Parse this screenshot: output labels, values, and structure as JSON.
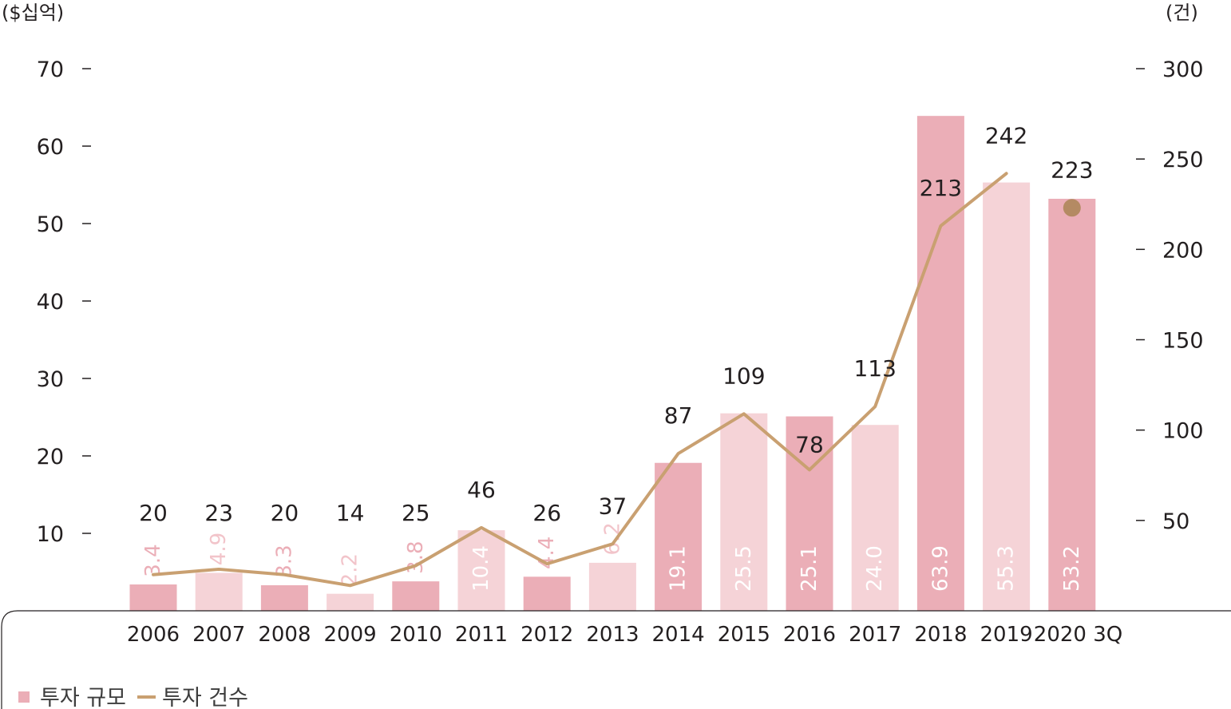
{
  "chart_data": {
    "type": "bar",
    "left_axis_unit": "($십억)",
    "right_axis_unit": "(건)",
    "left_ticks": [
      10,
      20,
      30,
      40,
      50,
      60,
      70
    ],
    "right_ticks": [
      50,
      100,
      150,
      200,
      250,
      300
    ],
    "ylim_left": [
      0,
      70
    ],
    "ylim_right": [
      0,
      300
    ],
    "categories": [
      "2006",
      "2007",
      "2008",
      "2009",
      "2010",
      "2011",
      "2012",
      "2013",
      "2014",
      "2015",
      "2016",
      "2017",
      "2018",
      "2019",
      "2020 3Q"
    ],
    "series": [
      {
        "name": "투자 규모",
        "axis": "left",
        "values": [
          3.4,
          4.9,
          3.3,
          2.2,
          3.8,
          10.4,
          4.4,
          6.2,
          19.1,
          25.5,
          25.1,
          24.0,
          63.9,
          55.3,
          53.2
        ],
        "labels": [
          "3.4",
          "4.9",
          "3.3",
          "2.2",
          "3.8",
          "10.4",
          "4.4",
          "6.2",
          "19.1",
          "25.5",
          "25.1",
          "24.0",
          "63.9",
          "55.3",
          "53.2"
        ]
      },
      {
        "name": "투자 건수",
        "axis": "right",
        "values": [
          20,
          23,
          20,
          14,
          25,
          46,
          26,
          37,
          87,
          109,
          78,
          113,
          213,
          242,
          223
        ]
      }
    ],
    "legend": [
      "투자 규모",
      "투자 건수"
    ],
    "legend_position": "bottom-left",
    "colors": {
      "bar_dark": "#ebaeb7",
      "bar_light": "#f5d3d7",
      "line": "#c9a071",
      "marker": "#b48a63",
      "label_on_light": "#f2c4ca",
      "label_dark": "#231f20"
    }
  }
}
